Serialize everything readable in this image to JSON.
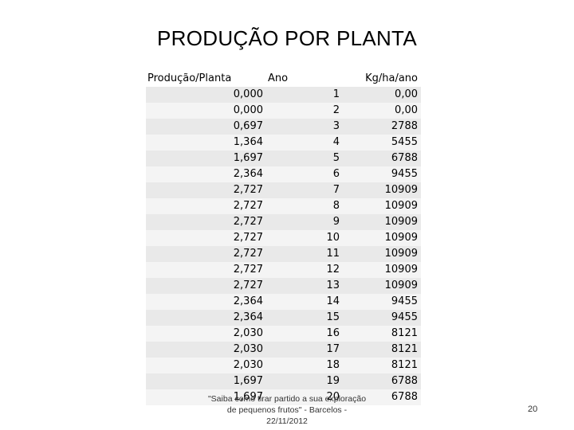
{
  "title": "PRODUÇÃO POR PLANTA",
  "table": {
    "headers": [
      "Produção/Planta",
      "Ano",
      "Kg/ha/ano"
    ],
    "rows": [
      [
        "0,000",
        "1",
        "0,00"
      ],
      [
        "0,000",
        "2",
        "0,00"
      ],
      [
        "0,697",
        "3",
        "2788"
      ],
      [
        "1,364",
        "4",
        "5455"
      ],
      [
        "1,697",
        "5",
        "6788"
      ],
      [
        "2,364",
        "6",
        "9455"
      ],
      [
        "2,727",
        "7",
        "10909"
      ],
      [
        "2,727",
        "8",
        "10909"
      ],
      [
        "2,727",
        "9",
        "10909"
      ],
      [
        "2,727",
        "10",
        "10909"
      ],
      [
        "2,727",
        "11",
        "10909"
      ],
      [
        "2,727",
        "12",
        "10909"
      ],
      [
        "2,727",
        "13",
        "10909"
      ],
      [
        "2,364",
        "14",
        "9455"
      ],
      [
        "2,364",
        "15",
        "9455"
      ],
      [
        "2,030",
        "16",
        "8121"
      ],
      [
        "2,030",
        "17",
        "8121"
      ],
      [
        "2,030",
        "18",
        "8121"
      ],
      [
        "1,697",
        "19",
        "6788"
      ],
      [
        "1,697",
        "20",
        "6788"
      ]
    ]
  },
  "footer": {
    "line1": "\"Saiba como tirar partido a sua exploração",
    "line2": "de pequenos frutos\" - Barcelos -",
    "line3": "22/11/2012"
  },
  "page_number": "20"
}
